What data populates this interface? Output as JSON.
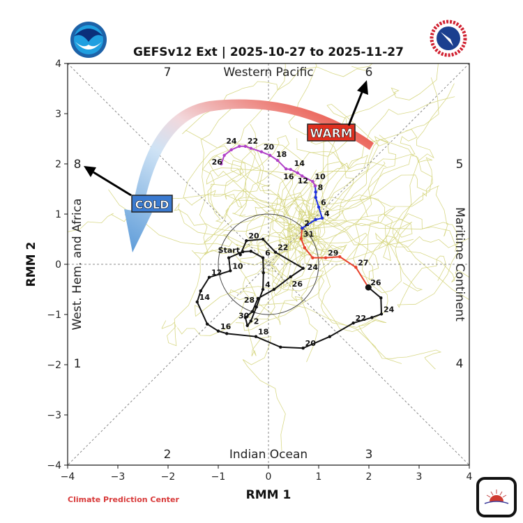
{
  "chart_data": {
    "type": "line",
    "title": "GEFSv12 Ext | 2025-10-27 to 2025-11-27",
    "xlabel": "RMM 1",
    "ylabel": "RMM 2",
    "xlim": [
      -4,
      4
    ],
    "ylim": [
      -4,
      4
    ],
    "xticks": [
      "−4",
      "−3",
      "−2",
      "−1",
      "0",
      "1",
      "2",
      "3",
      "4"
    ],
    "yticks": [
      "−4",
      "−3",
      "−2",
      "−1",
      "0",
      "1",
      "2",
      "3",
      "4"
    ],
    "grid": false,
    "unit_circle_radius": 1,
    "phases": [
      "1",
      "2",
      "3",
      "4",
      "5",
      "6",
      "7",
      "8"
    ],
    "regions": {
      "top": "Western Pacific",
      "bottom": "Indian Ocean",
      "left": "West. Hem. and Africa",
      "right": "Maritime Continent"
    },
    "series": [
      {
        "kind": "observed",
        "color": "#111111",
        "points": [
          {
            "x": -0.56,
            "y": 0.19,
            "label": "Start"
          },
          {
            "x": -0.44,
            "y": 0.47,
            "label": "20"
          },
          {
            "x": -0.11,
            "y": 0.5
          },
          {
            "x": 0.14,
            "y": 0.24,
            "label": "22"
          },
          {
            "x": 0.69,
            "y": -0.08,
            "label": "24"
          },
          {
            "x": 0.44,
            "y": -0.25,
            "label": "26"
          },
          {
            "x": 0.11,
            "y": -0.5
          },
          {
            "x": -0.21,
            "y": -0.68,
            "label": "28"
          },
          {
            "x": -0.32,
            "y": -0.94,
            "label": "30"
          },
          {
            "x": -0.46,
            "y": -1.06
          },
          {
            "x": -0.42,
            "y": -1.22
          },
          {
            "x": -0.35,
            "y": -1.13,
            "label": "2"
          },
          {
            "x": -0.24,
            "y": -0.85
          },
          {
            "x": -0.11,
            "y": -0.5,
            "label": "4"
          },
          {
            "x": -0.1,
            "y": -0.17
          },
          {
            "x": -0.11,
            "y": 0.13,
            "label": "6"
          },
          {
            "x": -0.35,
            "y": 0.26
          },
          {
            "x": -0.51,
            "y": 0.25
          },
          {
            "x": -0.79,
            "y": 0.13
          },
          {
            "x": -0.76,
            "y": -0.13,
            "label": "10"
          },
          {
            "x": -1.18,
            "y": -0.26,
            "label": "12"
          },
          {
            "x": -1.35,
            "y": -0.53
          },
          {
            "x": -1.42,
            "y": -0.75,
            "label": "14"
          },
          {
            "x": -1.22,
            "y": -1.19
          },
          {
            "x": -1.0,
            "y": -1.33,
            "label": "16"
          },
          {
            "x": -0.83,
            "y": -1.38
          },
          {
            "x": -0.25,
            "y": -1.44,
            "label": "18"
          },
          {
            "x": 0.24,
            "y": -1.65
          },
          {
            "x": 0.69,
            "y": -1.67,
            "label": "20"
          },
          {
            "x": 1.22,
            "y": -1.44
          },
          {
            "x": 1.69,
            "y": -1.17,
            "label": "22"
          },
          {
            "x": 2.06,
            "y": -1.06
          },
          {
            "x": 2.25,
            "y": -0.99,
            "label": "24"
          },
          {
            "x": 2.24,
            "y": -0.67
          },
          {
            "x": 1.99,
            "y": -0.46,
            "label": "26"
          }
        ]
      },
      {
        "kind": "forecast-week1",
        "color": "#e8402a",
        "points": [
          {
            "x": 1.99,
            "y": -0.46
          },
          {
            "x": 1.74,
            "y": -0.06,
            "label": "27"
          },
          {
            "x": 1.42,
            "y": 0.15
          },
          {
            "x": 1.14,
            "y": 0.13,
            "label": "29"
          },
          {
            "x": 0.88,
            "y": 0.13
          },
          {
            "x": 0.72,
            "y": 0.33
          },
          {
            "x": 0.65,
            "y": 0.51,
            "label": "31"
          },
          {
            "x": 0.67,
            "y": 0.72
          }
        ]
      },
      {
        "kind": "forecast-week2",
        "color": "#1a2ee0",
        "points": [
          {
            "x": 0.67,
            "y": 0.72,
            "label": "2"
          },
          {
            "x": 0.94,
            "y": 0.89
          },
          {
            "x": 1.07,
            "y": 0.92,
            "label": "4"
          },
          {
            "x": 1.0,
            "y": 1.14,
            "label": "6"
          },
          {
            "x": 0.94,
            "y": 1.33
          },
          {
            "x": 0.94,
            "y": 1.44,
            "label": "8"
          },
          {
            "x": 0.93,
            "y": 1.56
          }
        ]
      },
      {
        "kind": "forecast-weeks3-4",
        "color": "#b040c8",
        "points": [
          {
            "x": 0.93,
            "y": 1.56
          },
          {
            "x": 0.88,
            "y": 1.65,
            "label": "10"
          },
          {
            "x": 0.67,
            "y": 1.76
          },
          {
            "x": 0.58,
            "y": 1.82,
            "label": "12"
          },
          {
            "x": 0.44,
            "y": 1.89,
            "label": "14"
          },
          {
            "x": 0.35,
            "y": 1.9,
            "label": "16"
          },
          {
            "x": 0.18,
            "y": 2.07,
            "label": "18"
          },
          {
            "x": 0.03,
            "y": 2.17
          },
          {
            "x": -0.14,
            "y": 2.24,
            "label": "20"
          },
          {
            "x": -0.35,
            "y": 2.31
          },
          {
            "x": -0.46,
            "y": 2.35,
            "label": "22"
          },
          {
            "x": -0.58,
            "y": 2.35,
            "label": "24"
          },
          {
            "x": -0.74,
            "y": 2.28
          },
          {
            "x": -0.88,
            "y": 2.17,
            "label": "26"
          },
          {
            "x": -0.94,
            "y": 2.0
          }
        ]
      }
    ],
    "ensemble_color": "#d4d47a",
    "annotations": {
      "warm": "WARM",
      "cold": "COLD",
      "warm_color": "#e03020",
      "cold_color": "#4a8ad0"
    }
  },
  "footer": {
    "credit": "Climate Prediction Center"
  },
  "logos": {
    "noaa": "NOAA",
    "nws": "NATIONAL WEATHER SERVICE"
  }
}
